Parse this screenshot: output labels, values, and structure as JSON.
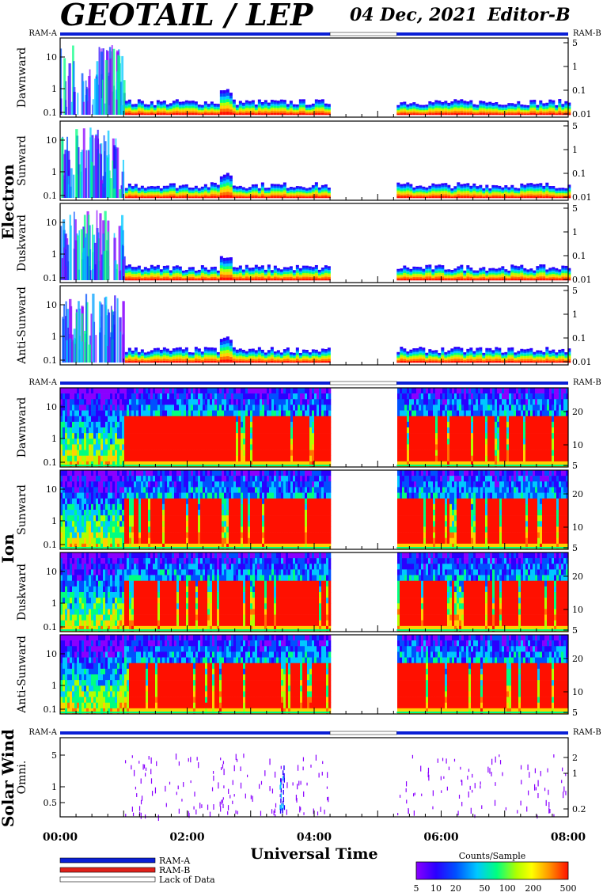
{
  "header": {
    "title": "GEOTAIL / LEP",
    "date": "04 Dec, 2021",
    "editor": "Editor-B"
  },
  "ram_label_left": "RAM-A",
  "ram_label_right": "RAM-B",
  "colors": {
    "ram_a": "#0a1fd6",
    "ram_b": "#e0201a",
    "lack": "#ffffff"
  },
  "chart_data": {
    "type": "heatmap",
    "x_axis": {
      "title": "Universal Time",
      "ticks": [
        "00:00",
        "02:00",
        "04:00",
        "06:00",
        "08:00"
      ],
      "range_hours": [
        0,
        8
      ]
    },
    "data_gap_hours": [
      4.25,
      5.3
    ],
    "groups": [
      {
        "name": "Electron",
        "panels": [
          {
            "label": "Dawnward",
            "left_ticks": [
              "10",
              "1",
              "0.1"
            ],
            "right_ticks": [
              "5",
              "1",
              "0.1",
              "0.01"
            ]
          },
          {
            "label": "Sunward",
            "left_ticks": [
              "10",
              "1",
              "0.1"
            ],
            "right_ticks": [
              "5",
              "1",
              "0.1",
              "0.01"
            ]
          },
          {
            "label": "Duskward",
            "left_ticks": [
              "10",
              "1",
              "0.1"
            ],
            "right_ticks": [
              "5",
              "1",
              "0.1",
              "0.01"
            ]
          },
          {
            "label": "Anti-Sunward",
            "left_ticks": [
              "10",
              "1",
              "0.1"
            ],
            "right_ticks": [
              "5",
              "1",
              "0.1",
              "0.01"
            ]
          }
        ]
      },
      {
        "name": "Ion",
        "panels": [
          {
            "label": "Dawnward",
            "left_ticks": [
              "10",
              "1",
              "0.1"
            ],
            "right_ticks": [
              "20",
              "10",
              "5"
            ]
          },
          {
            "label": "Sunward",
            "left_ticks": [
              "10",
              "1",
              "0.1"
            ],
            "right_ticks": [
              "20",
              "10",
              "5"
            ]
          },
          {
            "label": "Duskward",
            "left_ticks": [
              "10",
              "1",
              "0.1"
            ],
            "right_ticks": [
              "20",
              "10",
              "5"
            ]
          },
          {
            "label": "Anti-Sunward",
            "left_ticks": [
              "10",
              "1",
              "0.1"
            ],
            "right_ticks": [
              "20",
              "10",
              "5"
            ]
          }
        ]
      },
      {
        "name": "Solar Wind",
        "panels": [
          {
            "label": "Omni.",
            "left_ticks": [
              "5",
              "1",
              "0.5"
            ],
            "right_ticks": [
              "2",
              "1",
              "0.2"
            ]
          }
        ]
      }
    ],
    "legend": {
      "items": [
        "RAM-A",
        "RAM-B",
        "Lack of Data"
      ]
    },
    "colorbar": {
      "title": "Counts/Sample",
      "ticks": [
        "5",
        "10",
        "20",
        "50",
        "100",
        "200",
        "500"
      ],
      "stops": [
        "#8a00ff",
        "#2a00ff",
        "#0050ff",
        "#00c8ff",
        "#00ff80",
        "#b0ff00",
        "#ffff00",
        "#ff9000",
        "#ff1000"
      ]
    }
  }
}
